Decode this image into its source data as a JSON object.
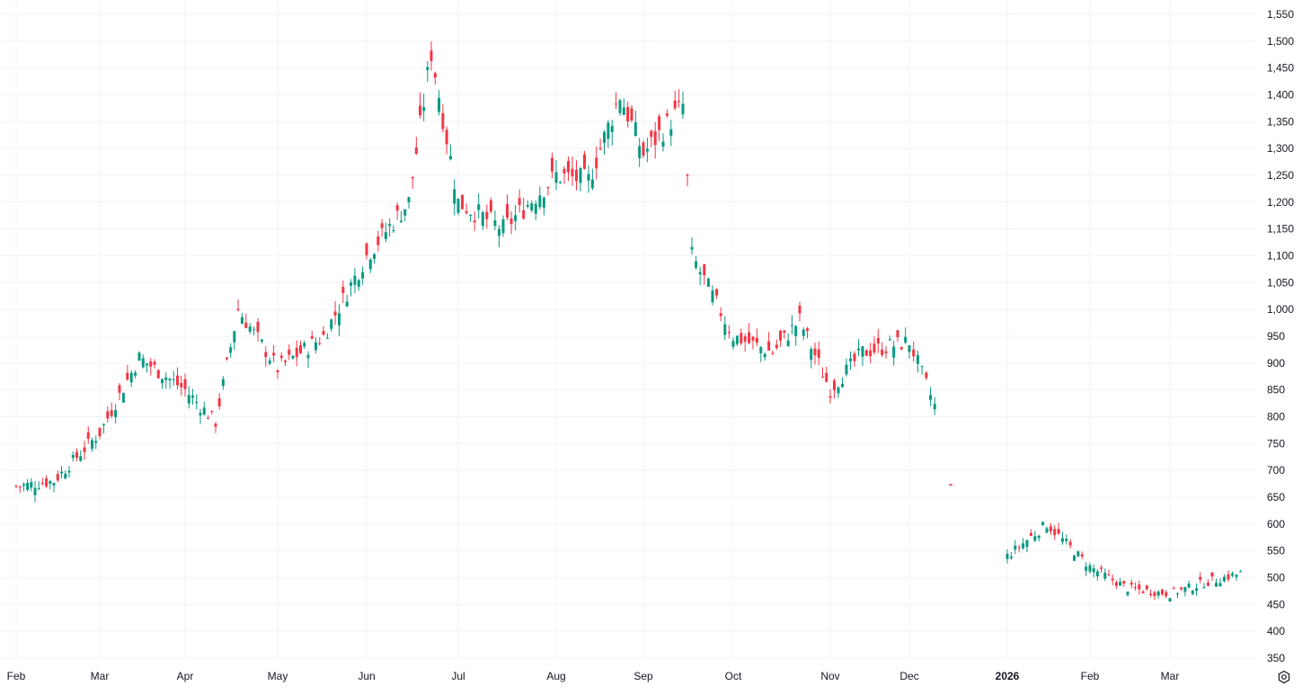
{
  "chart_data": {
    "type": "candlestick",
    "title": "",
    "xlabel": "",
    "ylabel": "",
    "ylim": [
      350,
      1560
    ],
    "y_ticks": [
      350,
      400,
      450,
      500,
      550,
      600,
      650,
      700,
      750,
      800,
      850,
      900,
      950,
      1000,
      1050,
      1100,
      1150,
      1200,
      1250,
      1300,
      1350,
      1400,
      1450,
      1500,
      1550
    ],
    "y_tick_labels": [
      "350",
      "400",
      "450",
      "500",
      "550",
      "600",
      "650",
      "700",
      "750",
      "800",
      "850",
      "900",
      "950",
      "1,000",
      "1,050",
      "1,100",
      "1,150",
      "1,200",
      "1,250",
      "1,300",
      "1,350",
      "1,400",
      "1,450",
      "1,500",
      "1,550"
    ],
    "x_labels": [
      {
        "label": "Feb",
        "bold": false
      },
      {
        "label": "Mar",
        "bold": false
      },
      {
        "label": "Apr",
        "bold": false
      },
      {
        "label": "May",
        "bold": false
      },
      {
        "label": "Jun",
        "bold": false
      },
      {
        "label": "Jul",
        "bold": false
      },
      {
        "label": "Aug",
        "bold": false
      },
      {
        "label": "Sep",
        "bold": false
      },
      {
        "label": "Oct",
        "bold": false
      },
      {
        "label": "Nov",
        "bold": false
      },
      {
        "label": "Dec",
        "bold": false
      },
      {
        "label": "2026",
        "bold": true
      },
      {
        "label": "Feb",
        "bold": false
      },
      {
        "label": "Mar",
        "bold": false
      }
    ],
    "grid": true,
    "up_color": "#089981",
    "down_color": "#f23645",
    "keypoints": [
      {
        "label": "Feb",
        "close": 670
      },
      {
        "label": "Feb mid",
        "close": 680
      },
      {
        "label": "Mar",
        "close": 770
      },
      {
        "label": "Mar mid",
        "close": 910
      },
      {
        "label": "Apr",
        "close": 850
      },
      {
        "label": "Apr mid",
        "close": 790
      },
      {
        "label": "Apr late",
        "close": 1000
      },
      {
        "label": "May",
        "close": 890
      },
      {
        "label": "May mid",
        "close": 950
      },
      {
        "label": "Jun",
        "close": 1100
      },
      {
        "label": "Jun mid",
        "close": 1200
      },
      {
        "label": "Jun late",
        "close": 1480
      },
      {
        "label": "Jul",
        "close": 1200
      },
      {
        "label": "Jul mid",
        "close": 1150
      },
      {
        "label": "Aug",
        "close": 1250
      },
      {
        "label": "Aug mid",
        "close": 1240
      },
      {
        "label": "Aug late",
        "close": 1400
      },
      {
        "label": "Sep",
        "close": 1290
      },
      {
        "label": "Sep mid",
        "close": 1380
      },
      {
        "label": "Sep late",
        "close": 1100
      },
      {
        "label": "Oct",
        "close": 950
      },
      {
        "label": "Oct mid",
        "close": 920
      },
      {
        "label": "Oct late",
        "close": 980
      },
      {
        "label": "Nov",
        "close": 850
      },
      {
        "label": "Nov mid",
        "close": 920
      },
      {
        "label": "Dec",
        "close": 940
      },
      {
        "label": "Dec mid",
        "close": 800
      },
      {
        "label": "Dec gap",
        "close": 673
      },
      {
        "label": "2026",
        "close": 540
      },
      {
        "label": "2026 mid",
        "close": 600
      },
      {
        "label": "Feb 2026",
        "close": 520
      },
      {
        "label": "Feb 2026 late",
        "close": 480
      },
      {
        "label": "Mar 2026",
        "close": 470
      },
      {
        "label": "Mar 2026 mid",
        "close": 490
      },
      {
        "label": "Mar 2026 late",
        "close": 510
      }
    ]
  },
  "icons": {
    "settings": "settings-gear-icon"
  }
}
